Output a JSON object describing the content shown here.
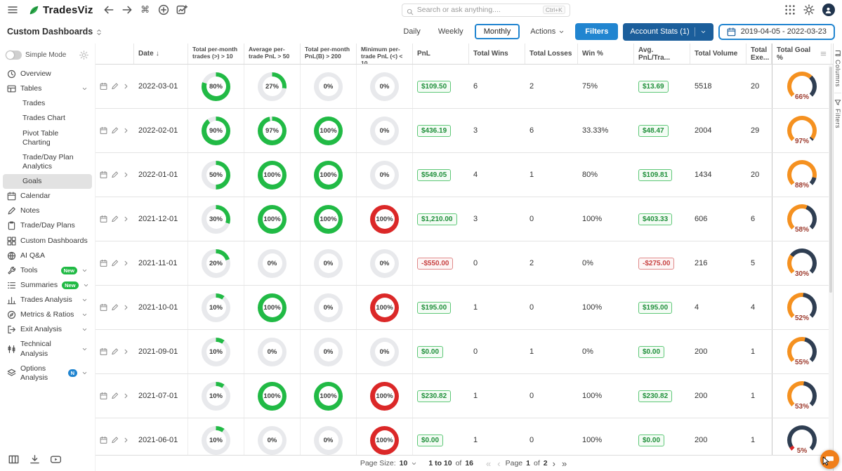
{
  "topbar": {
    "brand": "TradesViz",
    "search": {
      "placeholder": "Search or ask anything....",
      "shortcut": "Ctrl+K"
    }
  },
  "toolbar": {
    "title": "Custom Dashboards",
    "period_tabs": [
      "Daily",
      "Weekly",
      "Monthly"
    ],
    "active_period": "Monthly",
    "actions_label": "Actions",
    "filters_label": "Filters",
    "account_stats_label": "Account Stats (1)",
    "date_range": "2019-04-05 - 2022-03-23"
  },
  "sidebar": {
    "simple_mode_label": "Simple Mode",
    "items": [
      {
        "label": "Overview",
        "icon": "clock"
      },
      {
        "label": "Tables",
        "icon": "table",
        "chevron": true
      },
      {
        "label": "Trades",
        "child": true
      },
      {
        "label": "Trades Chart",
        "child": true
      },
      {
        "label": "Pivot Table Charting",
        "child": true
      },
      {
        "label": "Trade/Day Plan Analytics",
        "child": true
      },
      {
        "label": "Goals",
        "child": true,
        "active": true
      },
      {
        "label": "Calendar",
        "icon": "calendar"
      },
      {
        "label": "Notes",
        "icon": "pencil"
      },
      {
        "label": "Trade/Day Plans",
        "icon": "clipboard"
      },
      {
        "label": "Custom Dashboards",
        "icon": "grid"
      },
      {
        "label": "AI Q&A",
        "icon": "globe"
      },
      {
        "label": "Tools",
        "icon": "wrench",
        "badge": "New",
        "chevron": true
      },
      {
        "label": "Summaries",
        "icon": "list",
        "badge": "New",
        "chevron": true
      },
      {
        "label": "Trades Analysis",
        "icon": "bars",
        "chevron": true
      },
      {
        "label": "Metrics & Ratios",
        "icon": "compass",
        "chevron": true
      },
      {
        "label": "Exit Analysis",
        "icon": "exit",
        "chevron": true
      },
      {
        "label": "Technical Analysis",
        "icon": "candles",
        "chevron": true
      },
      {
        "label": "Options Analysis",
        "icon": "layers",
        "badge": "N",
        "chevron": true
      }
    ]
  },
  "table": {
    "headers": {
      "date": "Date",
      "goal_cols": [
        "Total per-month trades (>) > 10",
        "Average per-trade PnL > 50",
        "Total per-month PnL(B) > 200",
        "Minimum per-trade PnL (<) < 10"
      ],
      "metric_cols": [
        "PnL",
        "Total Wins",
        "Total Losses",
        "Win %",
        "Avg. PnL/Tra...",
        "Total Volume",
        "Total Exe...",
        "Total Goal %"
      ]
    },
    "rows": [
      {
        "date": "2022-03-01",
        "goal_donuts": [
          {
            "pct": 80,
            "color": "green"
          },
          {
            "pct": 27,
            "color": "green"
          },
          {
            "pct": 0,
            "color": "gray"
          },
          {
            "pct": 0,
            "color": "gray"
          }
        ],
        "pnl": "$109.50",
        "pnl_negative": false,
        "total_wins": "6",
        "total_losses": "2",
        "win_pct": "75%",
        "avg_pnl": "$13.69",
        "avg_pnl_negative": false,
        "total_volume": "5518",
        "total_executions": "20",
        "total_goal_pct": 66
      },
      {
        "date": "2022-02-01",
        "goal_donuts": [
          {
            "pct": 90,
            "color": "green"
          },
          {
            "pct": 97,
            "color": "green"
          },
          {
            "pct": 100,
            "color": "green"
          },
          {
            "pct": 0,
            "color": "gray"
          }
        ],
        "pnl": "$436.19",
        "pnl_negative": false,
        "total_wins": "3",
        "total_losses": "6",
        "win_pct": "33.33%",
        "avg_pnl": "$48.47",
        "avg_pnl_negative": false,
        "total_volume": "2004",
        "total_executions": "29",
        "total_goal_pct": 97
      },
      {
        "date": "2022-01-01",
        "goal_donuts": [
          {
            "pct": 50,
            "color": "green"
          },
          {
            "pct": 100,
            "color": "green"
          },
          {
            "pct": 100,
            "color": "green"
          },
          {
            "pct": 0,
            "color": "gray"
          }
        ],
        "pnl": "$549.05",
        "pnl_negative": false,
        "total_wins": "4",
        "total_losses": "1",
        "win_pct": "80%",
        "avg_pnl": "$109.81",
        "avg_pnl_negative": false,
        "total_volume": "1434",
        "total_executions": "20",
        "total_goal_pct": 88
      },
      {
        "date": "2021-12-01",
        "goal_donuts": [
          {
            "pct": 30,
            "color": "green"
          },
          {
            "pct": 100,
            "color": "green"
          },
          {
            "pct": 100,
            "color": "green"
          },
          {
            "pct": 100,
            "color": "red"
          }
        ],
        "pnl": "$1,210.00",
        "pnl_negative": false,
        "total_wins": "3",
        "total_losses": "0",
        "win_pct": "100%",
        "avg_pnl": "$403.33",
        "avg_pnl_negative": false,
        "total_volume": "606",
        "total_executions": "6",
        "total_goal_pct": 58
      },
      {
        "date": "2021-11-01",
        "goal_donuts": [
          {
            "pct": 20,
            "color": "green"
          },
          {
            "pct": 0,
            "color": "gray"
          },
          {
            "pct": 0,
            "color": "gray"
          },
          {
            "pct": 0,
            "color": "gray"
          }
        ],
        "pnl": "-$550.00",
        "pnl_negative": true,
        "total_wins": "0",
        "total_losses": "2",
        "win_pct": "0%",
        "avg_pnl": "-$275.00",
        "avg_pnl_negative": true,
        "total_volume": "216",
        "total_executions": "5",
        "total_goal_pct": 30
      },
      {
        "date": "2021-10-01",
        "goal_donuts": [
          {
            "pct": 10,
            "color": "green"
          },
          {
            "pct": 100,
            "color": "green"
          },
          {
            "pct": 0,
            "color": "gray"
          },
          {
            "pct": 100,
            "color": "red"
          }
        ],
        "pnl": "$195.00",
        "pnl_negative": false,
        "total_wins": "1",
        "total_losses": "0",
        "win_pct": "100%",
        "avg_pnl": "$195.00",
        "avg_pnl_negative": false,
        "total_volume": "4",
        "total_executions": "4",
        "total_goal_pct": 52
      },
      {
        "date": "2021-09-01",
        "goal_donuts": [
          {
            "pct": 10,
            "color": "green"
          },
          {
            "pct": 0,
            "color": "gray"
          },
          {
            "pct": 0,
            "color": "gray"
          },
          {
            "pct": 0,
            "color": "gray"
          }
        ],
        "pnl": "$0.00",
        "pnl_negative": false,
        "total_wins": "0",
        "total_losses": "1",
        "win_pct": "0%",
        "avg_pnl": "$0.00",
        "avg_pnl_negative": false,
        "total_volume": "200",
        "total_executions": "1",
        "total_goal_pct": 55
      },
      {
        "date": "2021-07-01",
        "goal_donuts": [
          {
            "pct": 10,
            "color": "green"
          },
          {
            "pct": 100,
            "color": "green"
          },
          {
            "pct": 100,
            "color": "green"
          },
          {
            "pct": 100,
            "color": "red"
          }
        ],
        "pnl": "$230.82",
        "pnl_negative": false,
        "total_wins": "1",
        "total_losses": "0",
        "win_pct": "100%",
        "avg_pnl": "$230.82",
        "avg_pnl_negative": false,
        "total_volume": "200",
        "total_executions": "1",
        "total_goal_pct": 53
      },
      {
        "date": "2021-06-01",
        "goal_donuts": [
          {
            "pct": 10,
            "color": "green"
          },
          {
            "pct": 0,
            "color": "gray"
          },
          {
            "pct": 0,
            "color": "gray"
          },
          {
            "pct": 100,
            "color": "red"
          }
        ],
        "pnl": "$0.00",
        "pnl_negative": false,
        "total_wins": "1",
        "total_losses": "0",
        "win_pct": "100%",
        "avg_pnl": "$0.00",
        "avg_pnl_negative": false,
        "total_volume": "200",
        "total_executions": "1",
        "total_goal_pct": 5
      }
    ]
  },
  "pagination": {
    "page_size_label": "Page Size:",
    "page_size": "10",
    "range_from_to": "1 to 10",
    "range_of": "of",
    "range_total": "16",
    "page_word": "Page",
    "page_current": "1",
    "page_of": "of",
    "page_total": "2"
  },
  "side_tabs": [
    "Columns",
    "Filters"
  ],
  "colors": {
    "green": "#21ba45",
    "red": "#db2828",
    "orange": "#f59120",
    "gauge_rest": "#2f3e52",
    "track": "#e8e9ec",
    "blue": "#2185d0",
    "dark_blue": "#1b5e9b"
  }
}
